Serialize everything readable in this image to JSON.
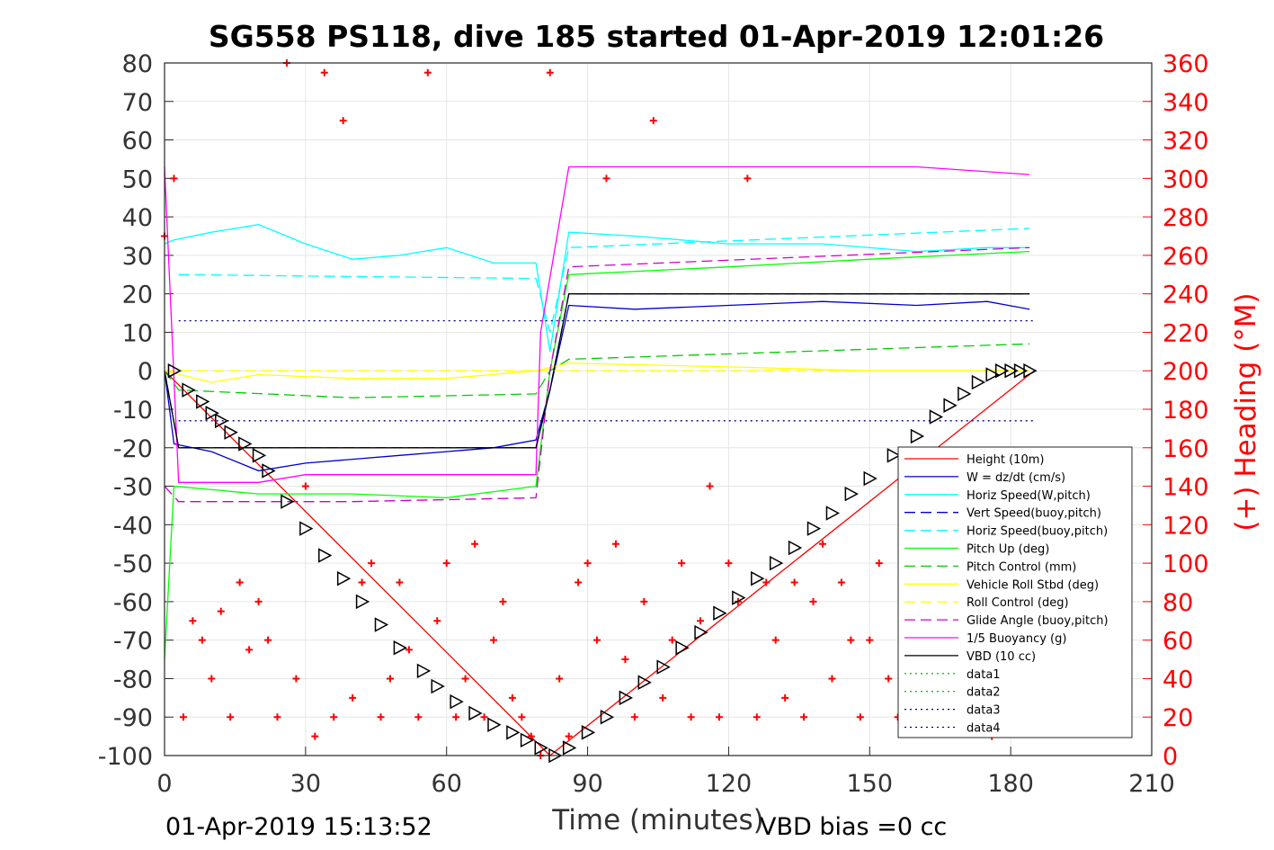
{
  "chart_data": {
    "type": "line",
    "title": "SG558 PS118, dive 185 started 01-Apr-2019 12:01:26",
    "xlabel": "Time (minutes)",
    "ylabel_right": "(+) Heading (°M)",
    "xlim": [
      0,
      210
    ],
    "ylim": [
      -100,
      80
    ],
    "ylim_right": [
      0,
      360
    ],
    "x_ticks": [
      "0",
      "30",
      "60",
      "90",
      "120",
      "150",
      "180",
      "210"
    ],
    "y_ticks": [
      "80",
      "70",
      "60",
      "50",
      "40",
      "30",
      "20",
      "10",
      "0",
      "-10",
      "-20",
      "-30",
      "-40",
      "-50",
      "-60",
      "-70",
      "-80",
      "-90",
      "-100"
    ],
    "y_ticks_right": [
      "360",
      "340",
      "320",
      "300",
      "280",
      "260",
      "240",
      "220",
      "200",
      "180",
      "160",
      "140",
      "120",
      "100",
      "80",
      "60",
      "40",
      "20",
      "0"
    ],
    "grid": true,
    "legend_position": "lower-right",
    "footer_left": "01-Apr-2019 15:13:52",
    "footer_right": "VBD bias =0 cc",
    "series": [
      {
        "name": "Height (10m)",
        "color": "#ff0000",
        "style": "solid",
        "x": [
          0,
          82,
          185
        ],
        "y": [
          0,
          -100,
          0
        ]
      },
      {
        "name": "W = dz/dt (cm/s)",
        "color": "#0000cc",
        "style": "solid",
        "x": [
          0,
          2,
          10,
          20,
          30,
          40,
          50,
          60,
          70,
          79,
          82,
          86,
          100,
          120,
          140,
          160,
          175,
          184
        ],
        "y": [
          0,
          -19,
          -21,
          -26,
          -24,
          -23,
          -22,
          -21,
          -20,
          -18,
          -5,
          17,
          16,
          17,
          18,
          17,
          18,
          16
        ]
      },
      {
        "name": "Horiz Speed(W,pitch)",
        "color": "#00ffff",
        "style": "solid",
        "x": [
          0,
          2,
          10,
          20,
          30,
          40,
          50,
          60,
          70,
          79,
          82,
          86,
          100,
          120,
          140,
          160,
          175,
          184
        ],
        "y": [
          33,
          34,
          36,
          38,
          33,
          29,
          30,
          32,
          28,
          28,
          5,
          36,
          35,
          33,
          33,
          31,
          32,
          32
        ]
      },
      {
        "name": "Vert Speed(buoy,pitch)",
        "color": "#0000cc",
        "style": "dashed",
        "x": [
          0,
          3,
          79,
          82,
          86,
          184
        ],
        "y": [
          0,
          -20,
          -20,
          -5,
          20,
          20
        ]
      },
      {
        "name": "Horiz Speed(buoy,pitch)",
        "color": "#00ffff",
        "style": "dashed",
        "x": [
          3,
          79,
          82,
          86,
          184
        ],
        "y": [
          25,
          24,
          10,
          32,
          37
        ]
      },
      {
        "name": "Pitch Up (deg)",
        "color": "#00ff00",
        "style": "solid",
        "x": [
          0,
          2,
          20,
          40,
          60,
          79,
          82,
          86,
          120,
          150,
          184
        ],
        "y": [
          -75,
          -30,
          -32,
          -32,
          -33,
          -30,
          0,
          25,
          27,
          29,
          31
        ]
      },
      {
        "name": "Pitch Control (mm)",
        "color": "#00cc00",
        "style": "dashed",
        "x": [
          0,
          3,
          40,
          79,
          82,
          86,
          184
        ],
        "y": [
          0,
          -5,
          -7,
          -6,
          0,
          3,
          7
        ]
      },
      {
        "name": "Vehicle Roll Stbd (deg)",
        "color": "#ffff00",
        "style": "solid",
        "x": [
          0,
          10,
          20,
          40,
          60,
          79,
          86,
          120,
          150,
          184
        ],
        "y": [
          0,
          -3,
          -1,
          -2,
          -2,
          0,
          2,
          1,
          0,
          0
        ]
      },
      {
        "name": "Roll Control (deg)",
        "color": "#ffff00",
        "style": "dashed",
        "x": [
          0,
          184
        ],
        "y": [
          0,
          0
        ]
      },
      {
        "name": "Glide Angle (buoy,pitch)",
        "color": "#cc00cc",
        "style": "dashed",
        "x": [
          0,
          3,
          40,
          79,
          82,
          86,
          184
        ],
        "y": [
          -30,
          -34,
          -34,
          -33,
          0,
          27,
          32
        ]
      },
      {
        "name": "1/5 Buoyancy (g)",
        "color": "#ff00ff",
        "style": "solid",
        "x": [
          0,
          3,
          20,
          30,
          40,
          79,
          80,
          86,
          100,
          150,
          160,
          184
        ],
        "y": [
          53,
          -29,
          -29,
          -27,
          -27,
          -27,
          10,
          53,
          53,
          53,
          53,
          51
        ]
      },
      {
        "name": "VBD (10 cc)",
        "color": "#000000",
        "style": "solid",
        "x": [
          0,
          3,
          79,
          82,
          86,
          184
        ],
        "y": [
          0,
          -20,
          -20,
          -5,
          20,
          20
        ]
      },
      {
        "name": "data1",
        "color": "#00cc00",
        "style": "dotted",
        "x": [],
        "y": []
      },
      {
        "name": "data2",
        "color": "#00cc00",
        "style": "dotted",
        "x": [],
        "y": []
      },
      {
        "name": "data3",
        "color": "#000080",
        "style": "dotted",
        "x": [
          3,
          185
        ],
        "y": [
          13,
          13
        ]
      },
      {
        "name": "data4",
        "color": "#000080",
        "style": "dotted",
        "x": [
          3,
          185
        ],
        "y": [
          -13,
          -13
        ]
      }
    ],
    "heading": {
      "name": "(+) Heading (°M)",
      "color": "#ff0000",
      "marker": "+",
      "x": [
        0,
        2,
        4,
        6,
        8,
        10,
        12,
        14,
        16,
        18,
        20,
        22,
        24,
        26,
        28,
        30,
        32,
        34,
        36,
        38,
        40,
        42,
        44,
        46,
        48,
        50,
        52,
        54,
        56,
        58,
        60,
        62,
        64,
        66,
        68,
        70,
        72,
        74,
        76,
        78,
        80,
        82,
        84,
        86,
        88,
        90,
        92,
        94,
        96,
        98,
        100,
        102,
        104,
        106,
        108,
        110,
        112,
        114,
        116,
        118,
        120,
        122,
        124,
        126,
        128,
        130,
        132,
        134,
        136,
        138,
        140,
        142,
        144,
        146,
        148,
        150,
        152,
        154,
        156,
        158,
        160,
        162,
        164,
        166,
        168,
        170,
        172,
        174,
        176,
        178,
        180,
        182,
        184
      ],
      "y": [
        270,
        300,
        20,
        70,
        60,
        40,
        75,
        20,
        90,
        55,
        80,
        60,
        20,
        360,
        40,
        140,
        10,
        355,
        20,
        330,
        30,
        90,
        100,
        20,
        40,
        90,
        55,
        20,
        355,
        70,
        100,
        20,
        40,
        110,
        20,
        60,
        80,
        30,
        20,
        10,
        0,
        355,
        40,
        10,
        90,
        100,
        60,
        300,
        110,
        50,
        20,
        80,
        330,
        30,
        60,
        100,
        20,
        70,
        140,
        20,
        100,
        80,
        300,
        20,
        90,
        60,
        30,
        90,
        20,
        80,
        110,
        40,
        90,
        60,
        20,
        60,
        100,
        40,
        20,
        80,
        30,
        60,
        20,
        80,
        40,
        60,
        20,
        30,
        10,
        20,
        40,
        60,
        30
      ]
    },
    "vbd_markers": {
      "color": "#000000",
      "marker": "triangle-right",
      "x": [
        2,
        5,
        8,
        10,
        12,
        14,
        17,
        20,
        22,
        26,
        30,
        34,
        38,
        42,
        46,
        50,
        55,
        58,
        62,
        66,
        70,
        74,
        77,
        80,
        83,
        86,
        90,
        94,
        98,
        102,
        106,
        110,
        114,
        118,
        122,
        126,
        130,
        134,
        138,
        142,
        146,
        150,
        155,
        160,
        164,
        167,
        170,
        173,
        176,
        178,
        180,
        182,
        184
      ],
      "y": [
        0,
        -5,
        -8,
        -11,
        -13,
        -16,
        -19,
        -22,
        -26,
        -34,
        -41,
        -48,
        -54,
        -60,
        -66,
        -72,
        -78,
        -82,
        -86,
        -89,
        -92,
        -94,
        -96,
        -98,
        -100,
        -98,
        -94,
        -90,
        -85,
        -81,
        -77,
        -72,
        -68,
        -63,
        -59,
        -54,
        -50,
        -46,
        -41,
        -37,
        -32,
        -28,
        -22,
        -17,
        -12,
        -9,
        -6,
        -3,
        -1,
        0,
        0,
        0,
        0
      ]
    }
  }
}
